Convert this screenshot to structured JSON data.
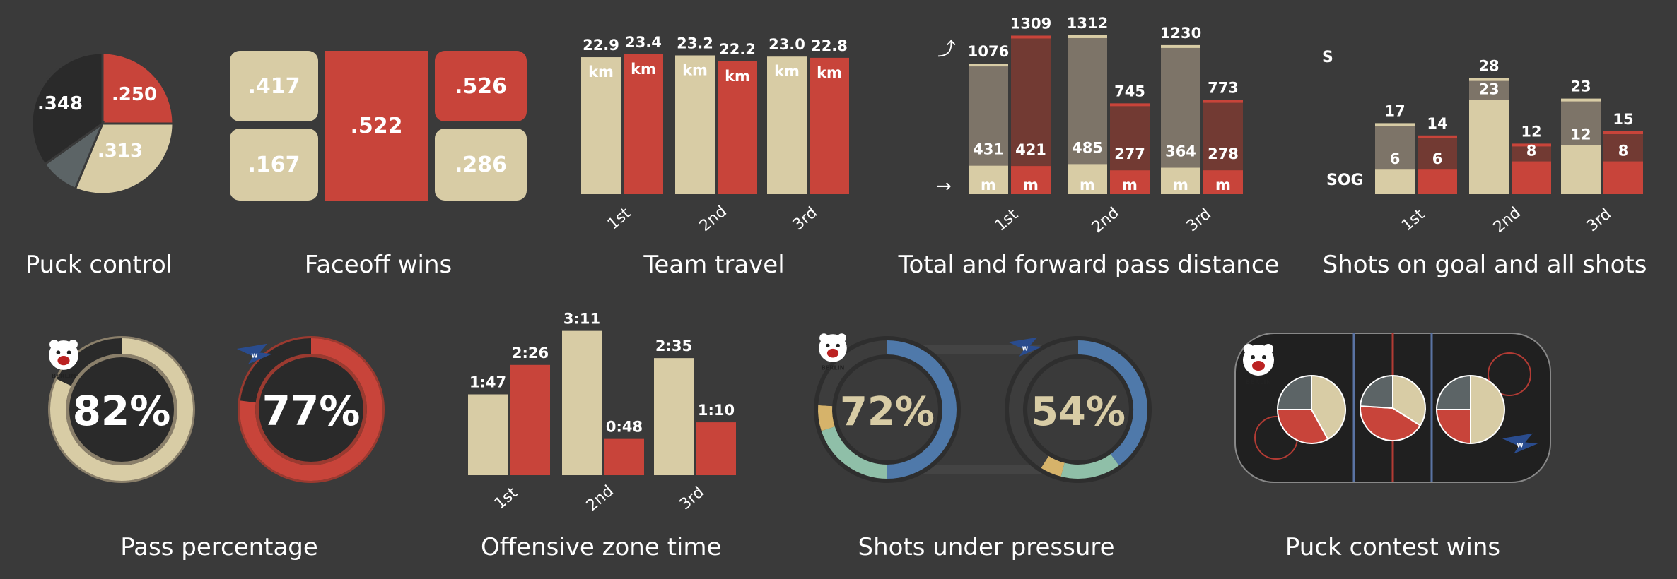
{
  "colors": {
    "background": "#3a3a3a",
    "berlin": "#d8ccA5",
    "berlin_dark": "#7d7263",
    "wildwings": "#c8443a",
    "wildwings_dark": "#7a3b33",
    "dark": "#2a2a2a",
    "slate": "#5c6466",
    "blue": "#4f79aa",
    "teal": "#7fb5a2",
    "gold": "#d6b36a",
    "text": "#ffffff"
  },
  "teams": {
    "home_logo_text": "BERLIN",
    "away_logo_text": "WILD WINGS"
  },
  "chart_data": [
    {
      "type": "pie",
      "title": "Puck control",
      "slices": [
        {
          "label": ".250",
          "value": 0.25,
          "color": "#c8443a"
        },
        {
          "label": ".313",
          "value": 0.313,
          "color": "#d8cca5"
        },
        {
          "label": "",
          "value": 0.089,
          "color": "#5c6466"
        },
        {
          "label": ".348",
          "value": 0.348,
          "color": "#2a2a2a"
        }
      ]
    },
    {
      "type": "table",
      "title": "Faceoff wins",
      "cells": [
        ".417",
        ".167",
        ".522",
        ".526",
        ".286"
      ]
    },
    {
      "type": "bar",
      "title": "Team travel",
      "categories": [
        "1st",
        "2nd",
        "3rd"
      ],
      "unit": "km",
      "series": [
        {
          "values": [
            22.9,
            23.2,
            23.0
          ]
        },
        {
          "values": [
            23.4,
            22.2,
            22.8
          ]
        }
      ],
      "labels": [
        [
          "22.9",
          "23.2",
          "23.0"
        ],
        [
          "23.4",
          "22.2",
          "22.8"
        ]
      ]
    },
    {
      "type": "bar",
      "title": "Total and forward pass distance",
      "categories": [
        "1st",
        "2nd",
        "3rd"
      ],
      "unit": "m",
      "series": [
        {
          "total": [
            1076,
            1312,
            1230
          ],
          "forward": [
            431,
            485,
            364
          ]
        },
        {
          "total": [
            1309,
            745,
            773
          ],
          "forward": [
            421,
            277,
            278
          ]
        }
      ]
    },
    {
      "type": "bar",
      "title": "Shots on goal and all shots",
      "categories": [
        "1st",
        "2nd",
        "3rd"
      ],
      "legend": [
        "S",
        "SOG"
      ],
      "series": [
        {
          "shots": [
            17,
            28,
            23
          ],
          "sog": [
            6,
            23,
            12
          ]
        },
        {
          "shots": [
            14,
            12,
            15
          ],
          "sog": [
            6,
            8,
            8
          ]
        }
      ]
    },
    {
      "type": "pie",
      "title": "Pass percentage",
      "values": [
        {
          "team": "BERLIN",
          "value": 82,
          "label": "82%"
        },
        {
          "team": "WILD WINGS",
          "value": 77,
          "label": "77%"
        }
      ]
    },
    {
      "type": "bar",
      "title": "Offensive zone time",
      "categories": [
        "1st",
        "2nd",
        "3rd"
      ],
      "series": [
        {
          "seconds": [
            107,
            191,
            155
          ],
          "labels": [
            "1:47",
            "3:11",
            "2:35"
          ]
        },
        {
          "seconds": [
            146,
            48,
            70
          ],
          "labels": [
            "2:26",
            "0:48",
            "1:10"
          ]
        }
      ]
    },
    {
      "type": "pie",
      "title": "Shots under pressure",
      "values": [
        {
          "team": "BERLIN",
          "value": 72,
          "label": "72%"
        },
        {
          "team": "WILD WINGS",
          "value": 54,
          "label": "54%"
        }
      ]
    },
    {
      "type": "pie",
      "title": "Puck contest wins",
      "rink": [
        {
          "slices": [
            0.42,
            0.33,
            0.25
          ]
        },
        {
          "slices": [
            0.34,
            0.42,
            0.24
          ]
        },
        {
          "slices": [
            0.5,
            0.25,
            0.25
          ]
        }
      ]
    }
  ]
}
